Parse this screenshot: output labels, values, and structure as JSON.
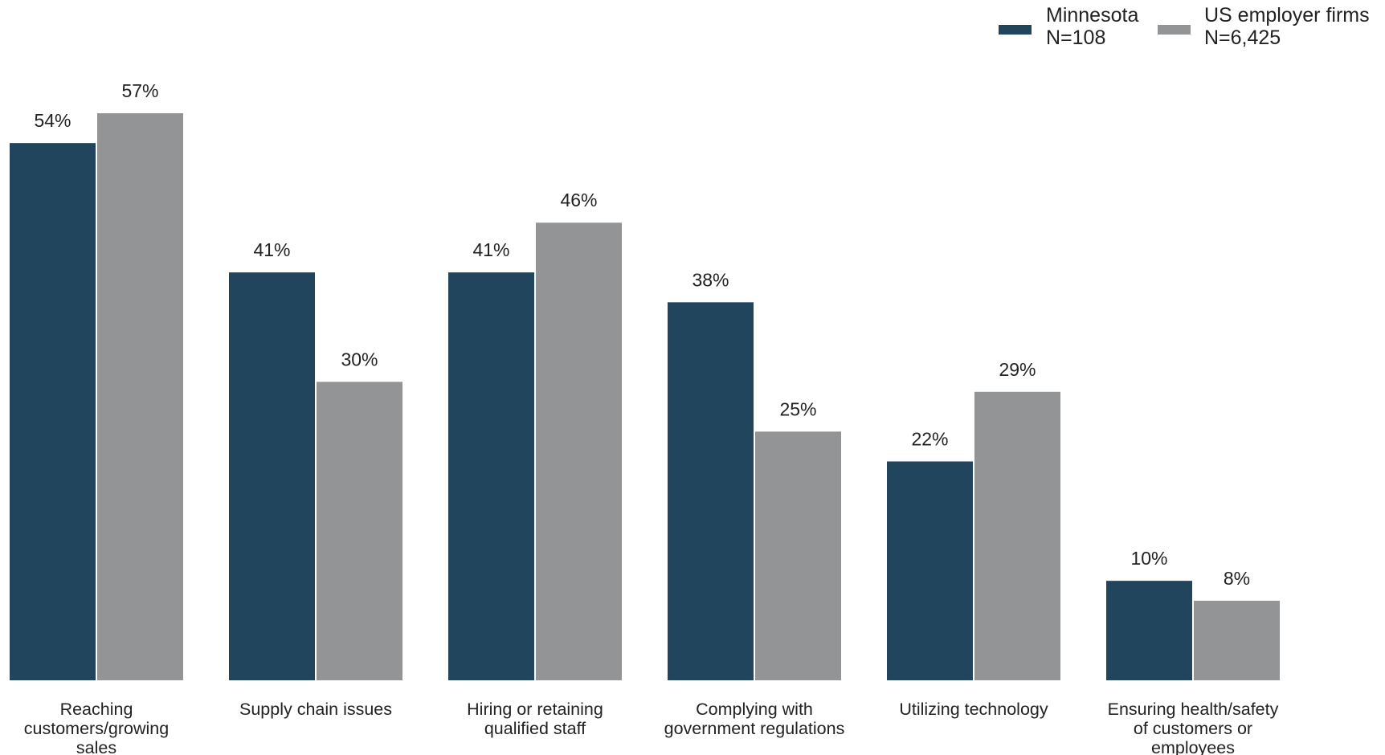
{
  "colors": {
    "minnesota": "#20455C",
    "us": "#939496"
  },
  "legend": [
    {
      "line1": "Minnesota",
      "line2": "N=108"
    },
    {
      "line1": "US employer firms",
      "line2": "N=6,425"
    }
  ],
  "chart_data": {
    "type": "bar",
    "categories": [
      [
        "Reaching",
        "customers/growing",
        "sales"
      ],
      [
        "Supply chain issues"
      ],
      [
        "Hiring or retaining",
        "qualified staff"
      ],
      [
        "Complying with",
        "government regulations"
      ],
      [
        "Utilizing technology"
      ],
      [
        "Ensuring health/safety",
        "of customers or",
        "employees"
      ]
    ],
    "series": [
      {
        "name": "Minnesota",
        "values": [
          54,
          41,
          41,
          38,
          22,
          10
        ],
        "labels": [
          "54%",
          "41%",
          "41%",
          "38%",
          "22%",
          "10%"
        ]
      },
      {
        "name": "US employer firms",
        "values": [
          57,
          30,
          46,
          25,
          29,
          8
        ],
        "labels": [
          "57%",
          "30%",
          "46%",
          "25%",
          "29%",
          "8%"
        ]
      }
    ],
    "title": "",
    "xlabel": "",
    "ylabel": "",
    "ylim": [
      0,
      57
    ],
    "grid": false,
    "legend_position": "top-right"
  }
}
